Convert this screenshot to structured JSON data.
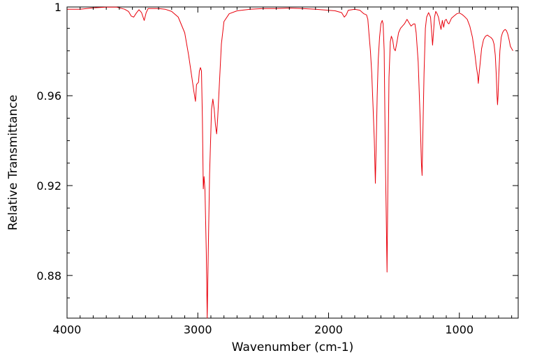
{
  "chart_data": {
    "type": "line",
    "title": "",
    "xlabel": "Wavenumber (cm-1)",
    "ylabel": "Relative Transmittance",
    "xlim": [
      4000,
      550
    ],
    "ylim": [
      0.861,
      0.9995
    ],
    "x_reversed": true,
    "grid": false,
    "legend": "none",
    "xticks": [
      {
        "value": 4000,
        "label": "4000"
      },
      {
        "value": 3000,
        "label": "3000"
      },
      {
        "value": 2000,
        "label": "2000"
      },
      {
        "value": 1000,
        "label": "1000"
      }
    ],
    "yticks": [
      {
        "value": 0.9995,
        "label": "1"
      },
      {
        "value": 0.96,
        "label": "0.96"
      },
      {
        "value": 0.92,
        "label": "0.92"
      },
      {
        "value": 0.88,
        "label": "0.88"
      }
    ],
    "series": [
      {
        "color": "#e8000b",
        "points": [
          [
            4000,
            0.9985
          ],
          [
            3900,
            0.9985
          ],
          [
            3800,
            0.9991
          ],
          [
            3700,
            0.9994
          ],
          [
            3620,
            0.9994
          ],
          [
            3560,
            0.9985
          ],
          [
            3530,
            0.9975
          ],
          [
            3510,
            0.9955
          ],
          [
            3490,
            0.995
          ],
          [
            3470,
            0.9968
          ],
          [
            3450,
            0.9983
          ],
          [
            3430,
            0.997
          ],
          [
            3410,
            0.9935
          ],
          [
            3395,
            0.997
          ],
          [
            3380,
            0.9988
          ],
          [
            3300,
            0.9988
          ],
          [
            3250,
            0.9985
          ],
          [
            3200,
            0.9975
          ],
          [
            3150,
            0.995
          ],
          [
            3100,
            0.988
          ],
          [
            3070,
            0.978
          ],
          [
            3045,
            0.968
          ],
          [
            3030,
            0.962
          ],
          [
            3018,
            0.9575
          ],
          [
            3010,
            0.965
          ],
          [
            2995,
            0.966
          ],
          [
            2988,
            0.971
          ],
          [
            2980,
            0.9725
          ],
          [
            2972,
            0.971
          ],
          [
            2965,
            0.95
          ],
          [
            2958,
            0.9185
          ],
          [
            2952,
            0.924
          ],
          [
            2945,
            0.918
          ],
          [
            2935,
            0.89
          ],
          [
            2928,
            0.861
          ],
          [
            2920,
            0.89
          ],
          [
            2910,
            0.925
          ],
          [
            2895,
            0.954
          ],
          [
            2885,
            0.9585
          ],
          [
            2875,
            0.954
          ],
          [
            2865,
            0.947
          ],
          [
            2856,
            0.943
          ],
          [
            2848,
            0.95
          ],
          [
            2835,
            0.965
          ],
          [
            2820,
            0.983
          ],
          [
            2800,
            0.993
          ],
          [
            2760,
            0.9965
          ],
          [
            2700,
            0.9978
          ],
          [
            2600,
            0.9985
          ],
          [
            2500,
            0.9988
          ],
          [
            2400,
            0.9988
          ],
          [
            2300,
            0.999
          ],
          [
            2200,
            0.9988
          ],
          [
            2100,
            0.9985
          ],
          [
            2000,
            0.998
          ],
          [
            1950,
            0.9978
          ],
          [
            1900,
            0.997
          ],
          [
            1880,
            0.995
          ],
          [
            1865,
            0.996
          ],
          [
            1850,
            0.998
          ],
          [
            1800,
            0.9985
          ],
          [
            1760,
            0.998
          ],
          [
            1730,
            0.9965
          ],
          [
            1710,
            0.996
          ],
          [
            1700,
            0.994
          ],
          [
            1690,
            0.987
          ],
          [
            1680,
            0.98
          ],
          [
            1670,
            0.97
          ],
          [
            1660,
            0.955
          ],
          [
            1650,
            0.94
          ],
          [
            1642,
            0.921
          ],
          [
            1635,
            0.94
          ],
          [
            1628,
            0.96
          ],
          [
            1620,
            0.976
          ],
          [
            1610,
            0.986
          ],
          [
            1600,
            0.992
          ],
          [
            1590,
            0.9935
          ],
          [
            1583,
            0.992
          ],
          [
            1575,
            0.98
          ],
          [
            1565,
            0.93
          ],
          [
            1560,
            0.91
          ],
          [
            1553,
            0.8815
          ],
          [
            1545,
            0.93
          ],
          [
            1538,
            0.968
          ],
          [
            1528,
            0.984
          ],
          [
            1520,
            0.9865
          ],
          [
            1510,
            0.985
          ],
          [
            1500,
            0.981
          ],
          [
            1490,
            0.98
          ],
          [
            1480,
            0.983
          ],
          [
            1465,
            0.988
          ],
          [
            1450,
            0.99
          ],
          [
            1420,
            0.992
          ],
          [
            1400,
            0.994
          ],
          [
            1385,
            0.9925
          ],
          [
            1370,
            0.991
          ],
          [
            1350,
            0.992
          ],
          [
            1340,
            0.992
          ],
          [
            1330,
            0.988
          ],
          [
            1315,
            0.975
          ],
          [
            1300,
            0.95
          ],
          [
            1290,
            0.93
          ],
          [
            1285,
            0.9245
          ],
          [
            1280,
            0.94
          ],
          [
            1270,
            0.97
          ],
          [
            1260,
            0.99
          ],
          [
            1250,
            0.995
          ],
          [
            1235,
            0.997
          ],
          [
            1220,
            0.995
          ],
          [
            1210,
            0.987
          ],
          [
            1205,
            0.9825
          ],
          [
            1198,
            0.988
          ],
          [
            1190,
            0.995
          ],
          [
            1180,
            0.9975
          ],
          [
            1170,
            0.9965
          ],
          [
            1160,
            0.995
          ],
          [
            1150,
            0.992
          ],
          [
            1140,
            0.9895
          ],
          [
            1130,
            0.9935
          ],
          [
            1120,
            0.9905
          ],
          [
            1110,
            0.9935
          ],
          [
            1100,
            0.994
          ],
          [
            1090,
            0.9925
          ],
          [
            1080,
            0.992
          ],
          [
            1060,
            0.9945
          ],
          [
            1040,
            0.9955
          ],
          [
            1020,
            0.9965
          ],
          [
            1000,
            0.9968
          ],
          [
            980,
            0.9962
          ],
          [
            960,
            0.9952
          ],
          [
            940,
            0.994
          ],
          [
            920,
            0.991
          ],
          [
            900,
            0.986
          ],
          [
            880,
            0.978
          ],
          [
            870,
            0.973
          ],
          [
            860,
            0.969
          ],
          [
            855,
            0.9655
          ],
          [
            850,
            0.969
          ],
          [
            840,
            0.975
          ],
          [
            830,
            0.981
          ],
          [
            815,
            0.985
          ],
          [
            800,
            0.9865
          ],
          [
            785,
            0.987
          ],
          [
            775,
            0.9865
          ],
          [
            760,
            0.986
          ],
          [
            745,
            0.985
          ],
          [
            735,
            0.983
          ],
          [
            725,
            0.978
          ],
          [
            718,
            0.97
          ],
          [
            712,
            0.96
          ],
          [
            708,
            0.956
          ],
          [
            704,
            0.96
          ],
          [
            698,
            0.97
          ],
          [
            690,
            0.98
          ],
          [
            680,
            0.986
          ],
          [
            670,
            0.988
          ],
          [
            660,
            0.989
          ],
          [
            650,
            0.9895
          ],
          [
            640,
            0.989
          ],
          [
            630,
            0.9875
          ],
          [
            620,
            0.985
          ],
          [
            610,
            0.982
          ],
          [
            600,
            0.981
          ],
          [
            590,
            0.98
          ]
        ]
      }
    ]
  }
}
